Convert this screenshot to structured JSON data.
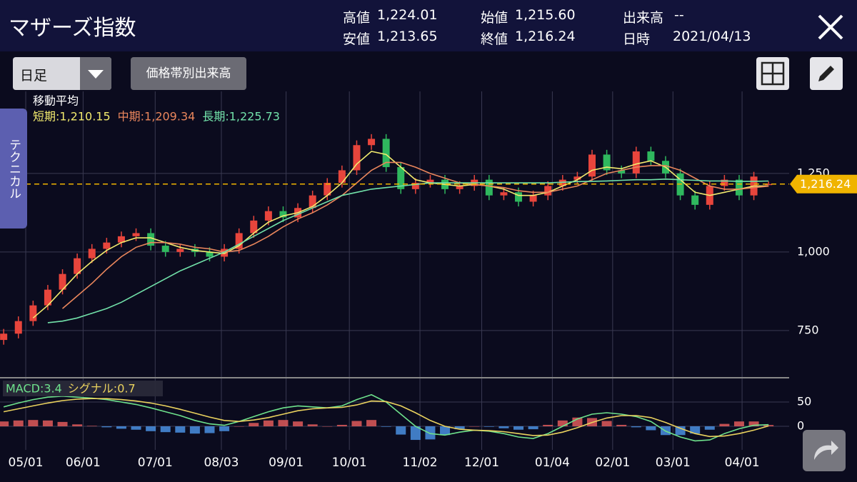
{
  "header": {
    "title": "マザーズ指数",
    "stats": [
      [
        "高値",
        "1,224.01"
      ],
      [
        "安値",
        "1,213.65"
      ],
      [
        "始値",
        "1,215.60"
      ],
      [
        "終値",
        "1,216.24"
      ],
      [
        "出来高",
        "--"
      ],
      [
        "日時",
        "2021/04/13"
      ]
    ]
  },
  "toolbar": {
    "period": "日足",
    "volume_button": "価格帯別出来高",
    "side_tab": "テクニカル"
  },
  "chart_data": [
    {
      "type": "candlestick",
      "legend_title": "移動平均",
      "up_color": "#e8453c",
      "down_color": "#2fb85e",
      "xlim": [
        -0.25,
        53.4
      ],
      "xticks": [
        {
          "value": 1.5,
          "label": "05/01"
        },
        {
          "value": 5.4,
          "label": "06/01"
        },
        {
          "value": 10.3,
          "label": "07/01"
        },
        {
          "value": 14.8,
          "label": "08/03"
        },
        {
          "value": 19.2,
          "label": "09/01"
        },
        {
          "value": 23.5,
          "label": "10/01"
        },
        {
          "value": 28.3,
          "label": "11/02"
        },
        {
          "value": 32.5,
          "label": "12/01"
        },
        {
          "value": 37.3,
          "label": "01/04"
        },
        {
          "value": 41.4,
          "label": "02/01"
        },
        {
          "value": 45.5,
          "label": "03/01"
        },
        {
          "value": 50.2,
          "label": "04/01"
        }
      ],
      "ylim": [
        602,
        1511
      ],
      "yticks": [
        {
          "value": 1250,
          "label": "1,250"
        },
        {
          "value": 1000,
          "label": "1,000"
        },
        750
      ],
      "grid": true,
      "candles": {
        "open": [
          720,
          740,
          780,
          830,
          880,
          930,
          980,
          1010,
          1030,
          1050,
          1060,
          1020,
          1000,
          1010,
          1000,
          985,
          1010,
          1060,
          1100,
          1130,
          1110,
          1140,
          1180,
          1220,
          1260,
          1340,
          1360,
          1270,
          1200,
          1220,
          1230,
          1200,
          1210,
          1230,
          1180,
          1190,
          1160,
          1180,
          1210,
          1230,
          1240,
          1310,
          1260,
          1250,
          1320,
          1290,
          1250,
          1180,
          1150,
          1210,
          1230,
          1180,
          1215.6
        ],
        "high": [
          755,
          795,
          845,
          895,
          945,
          995,
          1025,
          1045,
          1065,
          1075,
          1075,
          1035,
          1025,
          1025,
          1015,
          1025,
          1075,
          1115,
          1145,
          1145,
          1155,
          1195,
          1235,
          1275,
          1355,
          1375,
          1375,
          1285,
          1235,
          1245,
          1245,
          1225,
          1245,
          1245,
          1205,
          1205,
          1195,
          1225,
          1245,
          1255,
          1325,
          1325,
          1275,
          1335,
          1335,
          1305,
          1265,
          1195,
          1225,
          1245,
          1245,
          1255,
          1224.01
        ],
        "low": [
          705,
          725,
          765,
          815,
          865,
          915,
          965,
          995,
          1015,
          1035,
          1005,
          985,
          985,
          985,
          970,
          970,
          995,
          1045,
          1085,
          1095,
          1095,
          1125,
          1165,
          1205,
          1245,
          1325,
          1255,
          1185,
          1185,
          1205,
          1185,
          1185,
          1195,
          1165,
          1165,
          1145,
          1145,
          1165,
          1195,
          1215,
          1225,
          1245,
          1235,
          1235,
          1275,
          1235,
          1165,
          1135,
          1135,
          1195,
          1165,
          1165,
          1213.65
        ],
        "close": [
          740,
          780,
          830,
          880,
          930,
          980,
          1010,
          1030,
          1050,
          1060,
          1020,
          1000,
          1010,
          1000,
          985,
          1010,
          1060,
          1100,
          1130,
          1110,
          1140,
          1180,
          1220,
          1260,
          1340,
          1360,
          1270,
          1200,
          1220,
          1230,
          1200,
          1210,
          1230,
          1180,
          1190,
          1160,
          1180,
          1210,
          1230,
          1240,
          1310,
          1260,
          1250,
          1320,
          1290,
          1250,
          1180,
          1150,
          1210,
          1230,
          1180,
          1240,
          1216.24
        ]
      },
      "moving_averages": [
        {
          "name": "短期:1,210.15",
          "color": "#f2ea6e",
          "values": [
            null,
            null,
            790,
            830,
            880,
            930,
            970,
            1005,
            1030,
            1045,
            1045,
            1030,
            1015,
            1005,
            1000,
            995,
            1020,
            1060,
            1095,
            1115,
            1125,
            1145,
            1180,
            1220,
            1280,
            1320,
            1310,
            1270,
            1230,
            1220,
            1215,
            1210,
            1215,
            1210,
            1200,
            1180,
            1180,
            1190,
            1210,
            1230,
            1260,
            1270,
            1265,
            1280,
            1290,
            1270,
            1230,
            1190,
            1180,
            1190,
            1200,
            1210,
            1210.15
          ]
        },
        {
          "name": "中期:1,209.34",
          "color": "#ea865c",
          "values": [
            null,
            null,
            null,
            null,
            820,
            860,
            900,
            945,
            985,
            1015,
            1030,
            1030,
            1025,
            1015,
            1010,
            1000,
            1005,
            1025,
            1050,
            1080,
            1105,
            1125,
            1150,
            1180,
            1220,
            1260,
            1285,
            1285,
            1270,
            1250,
            1235,
            1220,
            1215,
            1210,
            1205,
            1195,
            1190,
            1190,
            1200,
            1210,
            1230,
            1250,
            1260,
            1270,
            1275,
            1275,
            1260,
            1235,
            1210,
            1200,
            1200,
            1205,
            1209.34
          ]
        },
        {
          "name": "長期:1,225.73",
          "color": "#72e2aa",
          "values": [
            null,
            null,
            null,
            775,
            780,
            790,
            805,
            820,
            840,
            865,
            890,
            915,
            940,
            960,
            980,
            1000,
            1025,
            1050,
            1075,
            1100,
            1120,
            1140,
            1160,
            1180,
            1190,
            1200,
            1205,
            1210,
            1215,
            1220,
            1220,
            1220,
            1220,
            1220,
            1220,
            1220,
            1220,
            1220,
            1222,
            1224,
            1225,
            1226,
            1228,
            1230,
            1230,
            1232,
            1230,
            1228,
            1226,
            1226,
            1225,
            1225,
            1225.73
          ]
        }
      ],
      "last_price": {
        "value": 1216.24,
        "label": "1,216.24",
        "color": "#f0b400"
      }
    },
    {
      "type": "macd",
      "xlim": [
        -0.25,
        53.4
      ],
      "ylim": [
        -48.5,
        98.5
      ],
      "yticks": [
        50,
        0
      ],
      "series": [
        {
          "name": "MACD:3.4",
          "color": "#6ee28c",
          "values": [
            40,
            48,
            55,
            60,
            62,
            60,
            58,
            55,
            50,
            45,
            38,
            30,
            22,
            12,
            5,
            2,
            10,
            20,
            30,
            38,
            42,
            40,
            38,
            42,
            55,
            65,
            50,
            25,
            0,
            -15,
            -18,
            -12,
            -8,
            -10,
            -15,
            -22,
            -25,
            -15,
            0,
            15,
            25,
            28,
            25,
            20,
            10,
            -10,
            -22,
            -30,
            -28,
            -15,
            -5,
            2,
            3.4
          ]
        },
        {
          "name": "シグナル:0.7",
          "color": "#ead25e",
          "values": [
            30,
            36,
            42,
            48,
            53,
            56,
            57,
            57,
            55,
            52,
            48,
            42,
            35,
            27,
            19,
            12,
            10,
            13,
            18,
            25,
            32,
            36,
            38,
            39,
            44,
            52,
            51,
            42,
            28,
            12,
            0,
            -6,
            -8,
            -9,
            -11,
            -15,
            -19,
            -18,
            -12,
            -3,
            8,
            17,
            22,
            22,
            18,
            8,
            -4,
            -15,
            -21,
            -20,
            -15,
            -8,
            0.7
          ]
        }
      ],
      "histogram": {
        "up_color": "#e05a5a",
        "down_color": "#4a90e2",
        "values": [
          10,
          12,
          13,
          12,
          9,
          4,
          1,
          -2,
          -5,
          -7,
          -10,
          -12,
          -13,
          -15,
          -14,
          -10,
          0,
          7,
          12,
          13,
          10,
          4,
          0,
          3,
          11,
          13,
          -1,
          -17,
          -28,
          -27,
          -18,
          -6,
          0,
          -1,
          -4,
          -7,
          -6,
          3,
          12,
          18,
          17,
          11,
          3,
          -2,
          -8,
          -18,
          -18,
          -15,
          -7,
          5,
          10,
          10,
          2.7
        ]
      }
    }
  ]
}
